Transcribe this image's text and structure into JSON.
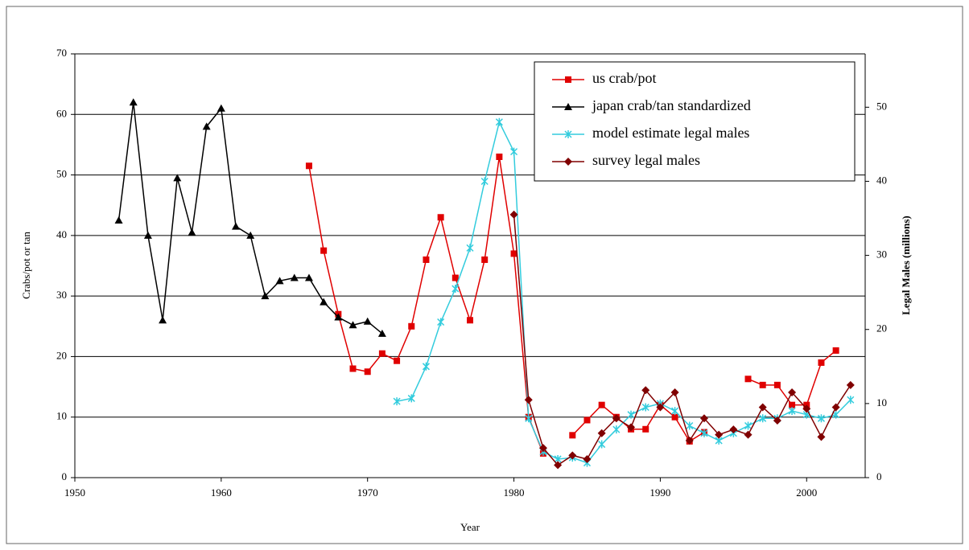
{
  "chart_data": {
    "type": "line",
    "xlabel": "Year",
    "ylabel": "Crabs/pot or tan",
    "y2label": "Legal Males (millions)",
    "xlim": [
      1950,
      2004
    ],
    "xticks": [
      1950,
      1960,
      1970,
      1980,
      1990,
      2000
    ],
    "ylim": [
      0,
      70
    ],
    "yticks": [
      0,
      10,
      20,
      30,
      40,
      50,
      60,
      70
    ],
    "y2lim": [
      0,
      57.2
    ],
    "y2ticks": [
      0,
      10,
      20,
      30,
      40,
      50
    ],
    "grid": true,
    "legend": "upper right",
    "series": [
      {
        "name": "us crab/pot",
        "color": "#e00000",
        "marker": "square",
        "x": [
          1966,
          1967,
          1968,
          1969,
          1970,
          1971,
          1972,
          1973,
          1974,
          1975,
          1976,
          1977,
          1978,
          1979,
          1980,
          1981,
          1982,
          1983,
          1984,
          1985,
          1986,
          1987,
          1988,
          1989,
          1990,
          1991,
          1992,
          1993,
          1994,
          1995,
          1996,
          1997,
          1998,
          1999,
          2000,
          2001,
          2002
        ],
        "values": [
          51.5,
          37.5,
          27,
          18,
          17.5,
          20.5,
          19.3,
          25,
          36,
          43,
          33,
          26,
          36,
          53,
          37,
          10,
          4,
          null,
          7,
          9.5,
          12,
          10,
          8,
          8,
          12,
          10,
          6,
          7.5,
          null,
          null,
          16.3,
          15.3,
          15.3,
          12,
          12,
          19,
          21
        ]
      },
      {
        "name": "japan crab/tan standardized",
        "color": "#000000",
        "marker": "triangle",
        "x": [
          1953,
          1954,
          1955,
          1956,
          1957,
          1958,
          1959,
          1960,
          1961,
          1962,
          1963,
          1964,
          1965,
          1966,
          1967,
          1968,
          1969,
          1970,
          1971
        ],
        "values": [
          42.5,
          62,
          40,
          26,
          49.5,
          40.5,
          58,
          61,
          41.5,
          40,
          30,
          32.5,
          33,
          33,
          29,
          26.5,
          25.2,
          25.8,
          23.8
        ]
      },
      {
        "name": "model estimate legal males",
        "color": "#33ccdd",
        "marker": "star",
        "axis": "y2",
        "x": [
          1972,
          1973,
          1974,
          1975,
          1976,
          1977,
          1978,
          1979,
          1980,
          1981,
          1982,
          1983,
          1984,
          1985,
          1986,
          1987,
          1988,
          1989,
          1990,
          1991,
          1992,
          1993,
          1994,
          1995,
          1996,
          1997,
          1998,
          1999,
          2000,
          2001,
          2002,
          2003
        ],
        "values": [
          10.3,
          10.7,
          15,
          21,
          25.5,
          31,
          40,
          48,
          44,
          8,
          3.5,
          2.5,
          2.7,
          2,
          4.5,
          6.5,
          8.5,
          9.5,
          10,
          9,
          7,
          6,
          5,
          6,
          7,
          8,
          8,
          9,
          8.5,
          8,
          8.5,
          10.5
        ]
      },
      {
        "name": "survey legal males",
        "color": "#800000",
        "marker": "diamond",
        "axis": "y2",
        "x": [
          1980,
          1981,
          1982,
          1983,
          1984,
          1985,
          1986,
          1987,
          1988,
          1989,
          1990,
          1991,
          1992,
          1993,
          1994,
          1995,
          1996,
          1997,
          1998,
          1999,
          2000,
          2001,
          2002,
          2003
        ],
        "values": [
          35.5,
          10.5,
          4,
          1.7,
          3,
          2.5,
          6,
          8,
          6.8,
          11.8,
          9.5,
          11.5,
          5,
          8,
          5.8,
          6.5,
          5.8,
          9.5,
          7.7,
          11.5,
          9.3,
          5.5,
          9.5,
          12.5
        ]
      }
    ]
  }
}
